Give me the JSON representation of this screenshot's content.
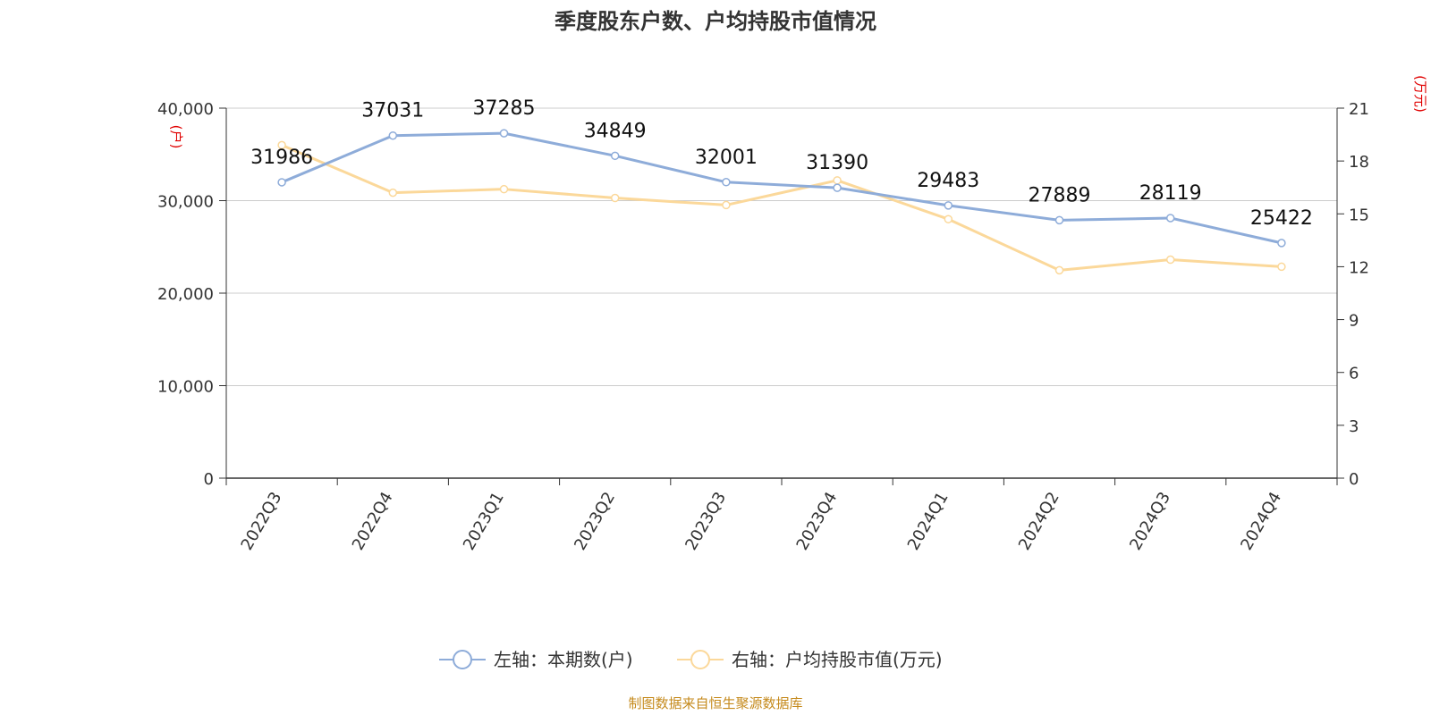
{
  "chart_data": {
    "type": "line",
    "title": "季度股东户数、户均持股市值情况",
    "categories": [
      "2022Q3",
      "2022Q4",
      "2023Q1",
      "2023Q2",
      "2023Q3",
      "2023Q4",
      "2024Q1",
      "2024Q2",
      "2024Q3",
      "2024Q4"
    ],
    "series": [
      {
        "name": "左轴：本期数(户)",
        "axis": "left",
        "color": "#8eacd9",
        "values": [
          31986,
          37031,
          37285,
          34849,
          32001,
          31390,
          29483,
          27889,
          28119,
          25422
        ],
        "labels": [
          "31986",
          "37031",
          "37285",
          "34849",
          "32001",
          "31390",
          "29483",
          "27889",
          "28119",
          "25422"
        ]
      },
      {
        "name": "右轴：户均持股市值(万元)",
        "axis": "right",
        "color": "#fbd89a",
        "values": [
          18.9,
          16.2,
          16.4,
          15.9,
          15.5,
          16.9,
          14.7,
          11.8,
          12.4,
          12.0
        ]
      }
    ],
    "y_left": {
      "unit": "(户)",
      "ylim": [
        0,
        40000
      ],
      "ticks": [
        0,
        10000,
        20000,
        30000,
        40000
      ],
      "tick_labels": [
        "0",
        "10,000",
        "20,000",
        "30,000",
        "40,000"
      ]
    },
    "y_right": {
      "unit": "(万元)",
      "ylim": [
        0,
        21
      ],
      "ticks": [
        0,
        3,
        6,
        9,
        12,
        15,
        18,
        21
      ],
      "tick_labels": [
        "0",
        "3",
        "6",
        "9",
        "12",
        "15",
        "18",
        "21"
      ]
    },
    "grid": true,
    "legend_position": "bottom",
    "source": "制图数据来自恒生聚源数据库"
  }
}
